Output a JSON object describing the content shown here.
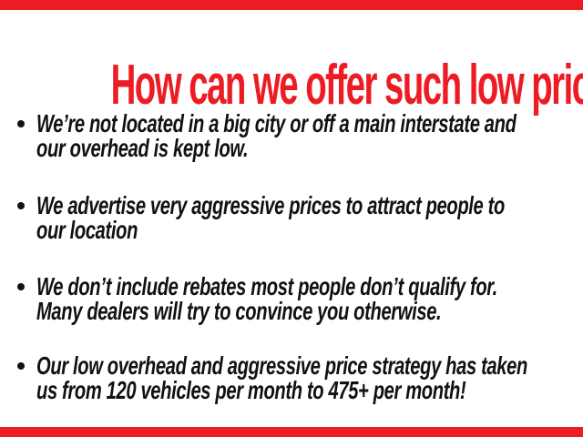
{
  "slide": {
    "title": "How can we offer such low prices?",
    "colors": {
      "accent_red": "#ed1c24",
      "text_black": "#111111",
      "background": "#ffffff"
    },
    "bullets": [
      {
        "line1": "We’re not located in a big city or off a main interstate and",
        "line2": "our overhead is kept low."
      },
      {
        "line1": "We advertise very aggressive prices to attract people to",
        "line2": "our location"
      },
      {
        "line1": "We don’t include rebates most people don’t qualify for.",
        "line2": "Many dealers will try to convince you otherwise."
      },
      {
        "line1": "Our low overhead and aggressive price strategy has taken",
        "line2": "us from 120 vehicles per month to 475+ per month!"
      }
    ]
  }
}
